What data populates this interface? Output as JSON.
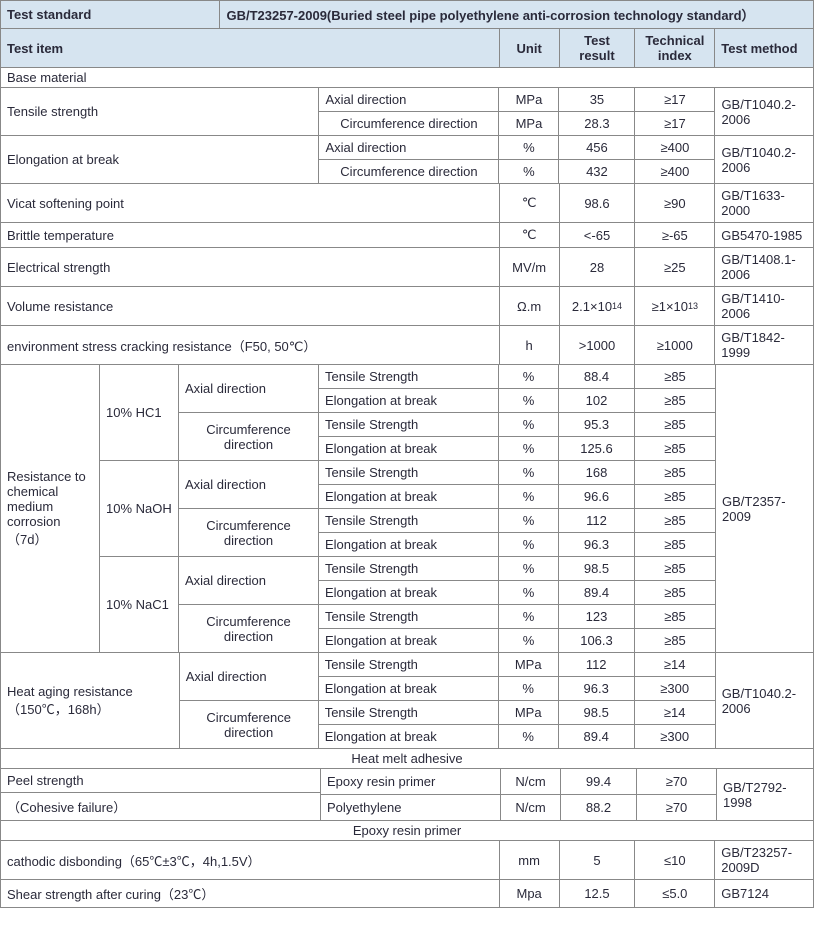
{
  "colors": {
    "header_bg": "#d6e4f0",
    "border": "#888888",
    "text": "#2a2a3a"
  },
  "header": {
    "test_standard_label": "Test standard",
    "test_standard_value": "GB/T23257-2009(Buried steel pipe polyethylene anti-corrosion technology standard）",
    "test_item": "Test item",
    "unit": "Unit",
    "test_result": "Test result",
    "tech_index": "Technical index",
    "test_method": "Test method"
  },
  "sections": {
    "base_material": "Base material",
    "heat_melt_adhesive": "Heat melt adhesive",
    "epoxy_resin_primer": "Epoxy resin primer"
  },
  "directions": {
    "axial": "Axial direction",
    "circ": "Circumference direction",
    "ts": "Tensile Strength",
    "eab": "Elongation at break"
  },
  "tensile_strength": {
    "label": "Tensile strength",
    "axial": {
      "unit": "MPa",
      "result": "35",
      "index": "≥17"
    },
    "circ": {
      "unit": "MPa",
      "result": "28.3",
      "index": "≥17"
    },
    "method": "GB/T1040.2-2006"
  },
  "elongation": {
    "label": "Elongation at break",
    "axial": {
      "unit": "%",
      "result": "456",
      "index": "≥400"
    },
    "circ": {
      "unit": "%",
      "result": "432",
      "index": "≥400"
    },
    "method": "GB/T1040.2-2006"
  },
  "vicat": {
    "label": "Vicat softening point",
    "unit": "℃",
    "result": "98.6",
    "index": "≥90",
    "method": "GB/T1633-2000"
  },
  "brittle": {
    "label": "Brittle temperature",
    "unit": "℃",
    "result": "<-65",
    "index": "≥-65",
    "method": "GB5470-1985"
  },
  "electrical": {
    "label": "Electrical strength",
    "unit": "MV/m",
    "result": "28",
    "index": "≥25",
    "method": "GB/T1408.1-2006"
  },
  "volume_res": {
    "label": "Volume resistance",
    "unit": "Ω.m",
    "result_html": "2.1×10<sup>14</sup>",
    "index_html": "≥1×10<sup>13</sup>",
    "method": "GB/T1410-2006"
  },
  "env_stress": {
    "label": "environment stress cracking resistance（F50, 50℃）",
    "unit": "h",
    "result": ">1000",
    "index": "≥1000",
    "method": "GB/T1842-1999"
  },
  "chem_resist": {
    "label": "Resistance to chemical medium corrosion（7d）",
    "method": "GB/T2357-2009",
    "media": [
      {
        "name": "10% HC1",
        "rows": [
          {
            "dir": "Axial direction",
            "prop": "Tensile Strength",
            "unit": "%",
            "result": "88.4",
            "index": "≥85"
          },
          {
            "dir": "",
            "prop": "Elongation at break",
            "unit": "%",
            "result": "102",
            "index": "≥85"
          },
          {
            "dir": "Circumference direction",
            "prop": "Tensile Strength",
            "unit": "%",
            "result": "95.3",
            "index": "≥85"
          },
          {
            "dir": "",
            "prop": "Elongation at break",
            "unit": "%",
            "result": "125.6",
            "index": "≥85"
          }
        ]
      },
      {
        "name": "10% NaOH",
        "rows": [
          {
            "dir": "Axial direction",
            "prop": "Tensile Strength",
            "unit": "%",
            "result": "168",
            "index": "≥85"
          },
          {
            "dir": "",
            "prop": "Elongation at break",
            "unit": "%",
            "result": "96.6",
            "index": "≥85"
          },
          {
            "dir": "Circumference direction",
            "prop": "Tensile Strength",
            "unit": "%",
            "result": "112",
            "index": "≥85"
          },
          {
            "dir": "",
            "prop": "Elongation at break",
            "unit": "%",
            "result": "96.3",
            "index": "≥85"
          }
        ]
      },
      {
        "name": "10% NaC1",
        "rows": [
          {
            "dir": "Axial direction",
            "prop": "Tensile Strength",
            "unit": "%",
            "result": "98.5",
            "index": "≥85"
          },
          {
            "dir": "",
            "prop": "Elongation at break",
            "unit": "%",
            "result": "89.4",
            "index": "≥85"
          },
          {
            "dir": "Circumference direction",
            "prop": "Tensile Strength",
            "unit": "%",
            "result": "123",
            "index": "≥85"
          },
          {
            "dir": "",
            "prop": "Elongation at break",
            "unit": "%",
            "result": "106.3",
            "index": "≥85"
          }
        ]
      }
    ]
  },
  "heat_aging": {
    "label": "Heat aging resistance（150℃，168h）",
    "method": "GB/T1040.2-2006",
    "rows": [
      {
        "dir": "Axial direction",
        "prop": "Tensile Strength",
        "unit": "MPa",
        "result": "112",
        "index": "≥14"
      },
      {
        "dir": "",
        "prop": "Elongation at break",
        "unit": "%",
        "result": "96.3",
        "index": "≥300"
      },
      {
        "dir": "Circumference direction",
        "prop": "Tensile Strength",
        "unit": "MPa",
        "result": "98.5",
        "index": "≥14"
      },
      {
        "dir": "",
        "prop": "Elongation at break",
        "unit": "%",
        "result": "89.4",
        "index": "≥300"
      }
    ]
  },
  "peel": {
    "label": "Peel strength",
    "sublabel": "（Cohesive failure）",
    "method": "GB/T2792-1998",
    "rows": [
      {
        "mat": "Epoxy resin primer",
        "unit": "N/cm",
        "result": "99.4",
        "index": "≥70"
      },
      {
        "mat": "Polyethylene",
        "unit": "N/cm",
        "result": "88.2",
        "index": "≥70"
      }
    ]
  },
  "cathodic": {
    "label": "cathodic disbonding（65℃±3℃，4h,1.5V）",
    "unit": "mm",
    "result": "5",
    "index": "≤10",
    "method": "GB/T23257-2009D"
  },
  "shearstr": {
    "label": "Shear strength after curing（23℃）",
    "unit": "Mpa",
    "result": "12.5",
    "index": "≤5.0",
    "method": "GB7124"
  }
}
